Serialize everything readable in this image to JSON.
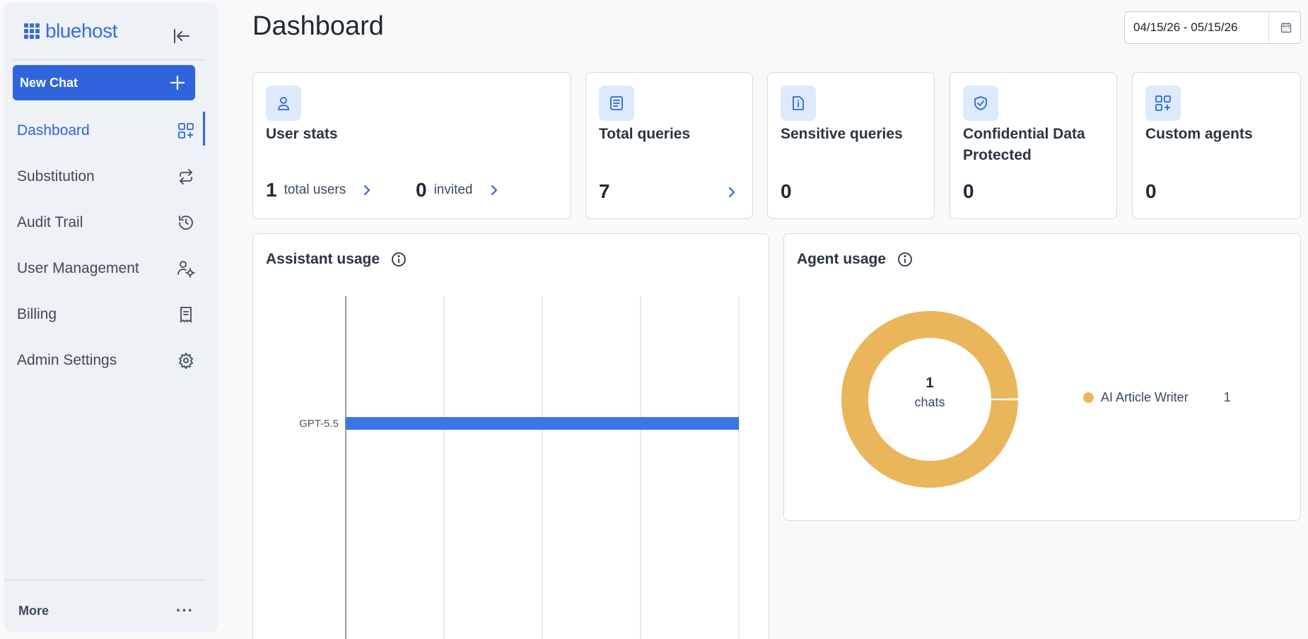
{
  "sidebar": {
    "brand": "bluehost",
    "new_chat_label": "New Chat",
    "items": [
      {
        "label": "Dashboard",
        "icon": "dashboard-add-icon",
        "active": true
      },
      {
        "label": "Substitution",
        "icon": "swap-icon",
        "active": false
      },
      {
        "label": "Audit Trail",
        "icon": "history-icon",
        "active": false
      },
      {
        "label": "User Management",
        "icon": "user-settings-icon",
        "active": false
      },
      {
        "label": "Billing",
        "icon": "receipt-icon",
        "active": false
      },
      {
        "label": "Admin Settings",
        "icon": "gear-icon",
        "active": false
      }
    ],
    "more_label": "More"
  },
  "header": {
    "title": "Dashboard",
    "date_range": "04/15/26 - 05/15/26"
  },
  "cards": {
    "user_stats": {
      "title": "User stats",
      "total_users": "1",
      "total_users_label": "total users",
      "invited": "0",
      "invited_label": "invited"
    },
    "total_queries": {
      "title": "Total queries",
      "value": "7"
    },
    "sensitive_queries": {
      "title": "Sensitive queries",
      "value": "0"
    },
    "confidential": {
      "title": "Confidential Data Protected",
      "value": "0"
    },
    "custom_agents": {
      "title": "Custom agents",
      "value": "0"
    }
  },
  "assistant_usage": {
    "title": "Assistant usage"
  },
  "agent_usage": {
    "title": "Agent usage",
    "center_value": "1",
    "center_label": "chats"
  },
  "colors": {
    "accent": "#2f64dd",
    "bar": "#3e74e6",
    "donut": "#e9b65c"
  },
  "chart_data": [
    {
      "type": "bar",
      "orientation": "horizontal",
      "categories": [
        "GPT-5.5"
      ],
      "values": [
        1
      ],
      "title": "",
      "xlim": [
        0,
        1
      ]
    },
    {
      "type": "pie",
      "donut": true,
      "labels": [
        "AI Article Writer"
      ],
      "values": [
        1
      ],
      "total_label": "chats"
    }
  ]
}
